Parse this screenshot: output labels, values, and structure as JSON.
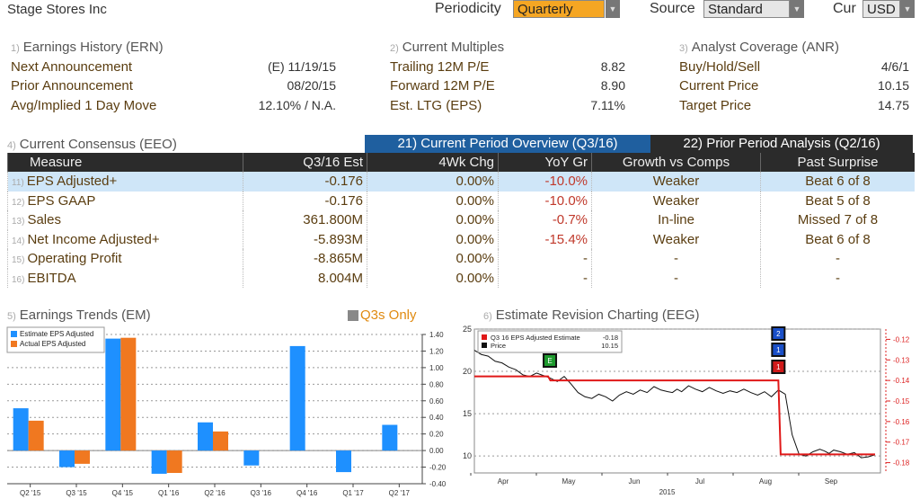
{
  "header": {
    "title": "Stage Stores Inc",
    "periodicity_label": "Periodicity",
    "periodicity_value": "Quarterly",
    "source_label": "Source",
    "source_value": "Standard",
    "cur_label": "Cur",
    "cur_value": "USD"
  },
  "earnings_history": {
    "num": "1)",
    "title": "Earnings History (ERN)",
    "rows": [
      {
        "label": "Next Announcement",
        "value": "(E)  11/19/15"
      },
      {
        "label": "Prior Announcement",
        "value": "08/20/15"
      },
      {
        "label": "Avg/Implied 1 Day Move",
        "value": "12.10% / N.A."
      }
    ]
  },
  "current_multiples": {
    "num": "2)",
    "title": "Current Multiples",
    "rows": [
      {
        "label": "Trailing 12M P/E",
        "value": "8.82"
      },
      {
        "label": "Forward 12M P/E",
        "value": "8.90"
      },
      {
        "label": "Est. LTG (EPS)",
        "value": "7.11%"
      }
    ]
  },
  "analyst_coverage": {
    "num": "3)",
    "title": "Analyst Coverage (ANR)",
    "rows": [
      {
        "label": "Buy/Hold/Sell",
        "value": "4/6/1"
      },
      {
        "label": "Current Price",
        "value": "10.15"
      },
      {
        "label": "Target Price",
        "value": "14.75"
      }
    ]
  },
  "consensus": {
    "num": "4)",
    "title": "Current Consensus (EEO)",
    "tab1": "21) Current Period Overview (Q3/16)",
    "tab2": "22) Prior Period Analysis (Q2/16)",
    "columns": [
      "Measure",
      "Q3/16 Est",
      "4Wk Chg",
      "YoY Gr",
      "Growth vs Comps",
      "Past Surprise"
    ],
    "rows": [
      {
        "n": "11)",
        "measure": "EPS Adjusted+",
        "est": "-0.176",
        "chg": "0.00%",
        "yoy": "-10.0%",
        "comps": "Weaker",
        "surprise": "Beat 6 of 8"
      },
      {
        "n": "12)",
        "measure": "EPS GAAP",
        "est": "-0.176",
        "chg": "0.00%",
        "yoy": "-10.0%",
        "comps": "Weaker",
        "surprise": "Beat 5 of 8"
      },
      {
        "n": "13)",
        "measure": "Sales",
        "est": "361.800M",
        "chg": "0.00%",
        "yoy": "-0.7%",
        "comps": "In-line",
        "surprise": "Missed 7 of 8"
      },
      {
        "n": "14)",
        "measure": "Net Income Adjusted+",
        "est": "-5.893M",
        "chg": "0.00%",
        "yoy": "-15.4%",
        "comps": "Weaker",
        "surprise": "Beat 6 of 8"
      },
      {
        "n": "15)",
        "measure": "Operating Profit",
        "est": "-8.865M",
        "chg": "0.00%",
        "yoy": "-",
        "comps": "-",
        "surprise": "-"
      },
      {
        "n": "16)",
        "measure": "EBITDA",
        "est": "8.004M",
        "chg": "0.00%",
        "yoy": "-",
        "comps": "-",
        "surprise": "-"
      }
    ]
  },
  "trends": {
    "num": "5)",
    "title": "Earnings Trends (EM)",
    "q3s_label": "Q3s Only",
    "colors": {
      "estimate": "#1e90ff",
      "actual": "#f07820"
    }
  },
  "revision": {
    "num": "6)",
    "title": "Estimate Revision Charting (EEG)",
    "legend_est": "Q3 16 EPS Adjusted Estimate",
    "legend_est_val": "-0.18",
    "legend_price": "Price",
    "legend_price_val": "10.15",
    "year_label": "2015",
    "markers": [
      "E",
      "2",
      "1",
      "1"
    ]
  },
  "chart_data": [
    {
      "type": "bar",
      "categories": [
        "Q2 '15",
        "Q3 '15",
        "Q4 '15",
        "Q1 '16",
        "Q2 '16",
        "Q3 '16",
        "Q4 '16",
        "Q1 '17",
        "Q2 '17"
      ],
      "series": [
        {
          "name": "Estimate EPS Adjusted",
          "values": [
            0.51,
            -0.2,
            1.35,
            -0.28,
            0.34,
            -0.18,
            1.26,
            -0.26,
            0.31
          ]
        },
        {
          "name": "Actual EPS Adjusted",
          "values": [
            0.36,
            -0.16,
            1.36,
            -0.27,
            0.23,
            null,
            null,
            null,
            null
          ]
        }
      ],
      "ylim": [
        -0.4,
        1.4
      ],
      "yticks": [
        -0.4,
        -0.2,
        0.0,
        0.2,
        0.4,
        0.6,
        0.8,
        1.0,
        1.2,
        1.4
      ],
      "ytick_labels": [
        "-0.40",
        "-0.20",
        "0.00",
        "0.20",
        "0.40",
        "0.60",
        "0.80",
        "1.00",
        "1.20",
        "1.40"
      ],
      "legend": "top-left"
    },
    {
      "type": "line",
      "x_labels": [
        "Apr",
        "May",
        "Jun",
        "Jul",
        "Aug",
        "Sep"
      ],
      "series": [
        {
          "name": "Price",
          "axis": "left",
          "x": [
            0,
            3,
            6,
            9,
            12,
            15,
            18,
            21,
            24,
            27,
            30,
            33,
            36,
            39,
            42,
            45,
            48,
            51,
            54,
            57,
            60,
            63,
            66,
            69,
            72,
            75,
            78,
            81,
            84,
            86,
            88,
            90,
            93,
            96,
            99,
            102,
            105,
            108,
            111,
            114,
            117,
            120,
            123,
            126,
            129,
            132,
            135,
            138,
            141,
            144,
            147,
            150,
            152,
            154,
            156,
            159,
            162,
            165,
            168,
            171,
            174
          ],
          "values": [
            22.5,
            22.0,
            21.8,
            21.2,
            21.0,
            20.5,
            20.2,
            19.6,
            19.4,
            19.8,
            19.5,
            19.2,
            18.8,
            19.4,
            18.5,
            17.5,
            17.0,
            16.8,
            17.3,
            17.0,
            16.5,
            17.2,
            17.6,
            17.3,
            17.8,
            17.5,
            18.2,
            17.8,
            17.6,
            17.5,
            17.9,
            17.6,
            18.3,
            17.9,
            17.6,
            18.1,
            17.7,
            17.4,
            17.7,
            17.5,
            17.9,
            17.5,
            17.2,
            17.6,
            17.0,
            17.8,
            17.3,
            12.5,
            10.2,
            10.0,
            10.5,
            10.8,
            10.6,
            10.3,
            10.7,
            10.5,
            10.2,
            10.4,
            9.8,
            9.9,
            10.15
          ]
        },
        {
          "name": "Q3 16 EPS Adjusted Estimate",
          "axis": "right",
          "x": [
            0,
            32,
            33,
            131,
            132,
            133,
            174
          ],
          "values": [
            -0.138,
            -0.138,
            -0.14,
            -0.14,
            -0.14,
            -0.176,
            -0.176
          ]
        }
      ],
      "ylim_left": [
        8,
        25
      ],
      "yticks_left": [
        10,
        15,
        20,
        25
      ],
      "ylim_right": [
        -0.185,
        -0.115
      ],
      "yticks_right": [
        -0.12,
        -0.13,
        -0.14,
        -0.15,
        -0.16,
        -0.17,
        -0.18
      ],
      "legend": "top-left"
    }
  ]
}
